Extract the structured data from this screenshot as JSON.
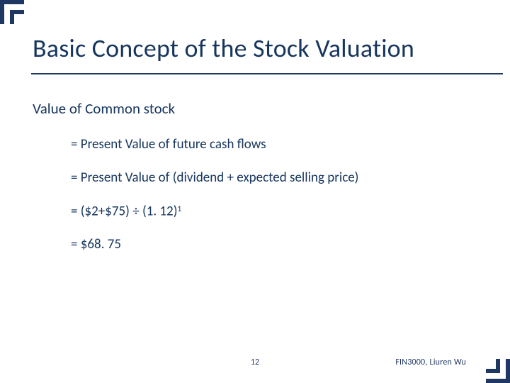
{
  "colors": {
    "accent": "#1f3763",
    "text": "#17365d",
    "underline": "#1f3763",
    "footer": "#1f3763"
  },
  "corner": {
    "outer": 34,
    "gap": 8,
    "thick": 6
  },
  "title": "Basic Concept of the Stock Valuation",
  "body": {
    "lead": "Value of Common stock",
    "lines": [
      "= Present Value of future cash flows",
      "= Present Value of (dividend + expected selling price)"
    ],
    "formula_base": "= ($2+$75) ÷ (1. 12)",
    "formula_exp": "1",
    "result": "= $68. 75"
  },
  "pageNumber": "12",
  "footerRight": "FIN3000, Liuren Wu"
}
